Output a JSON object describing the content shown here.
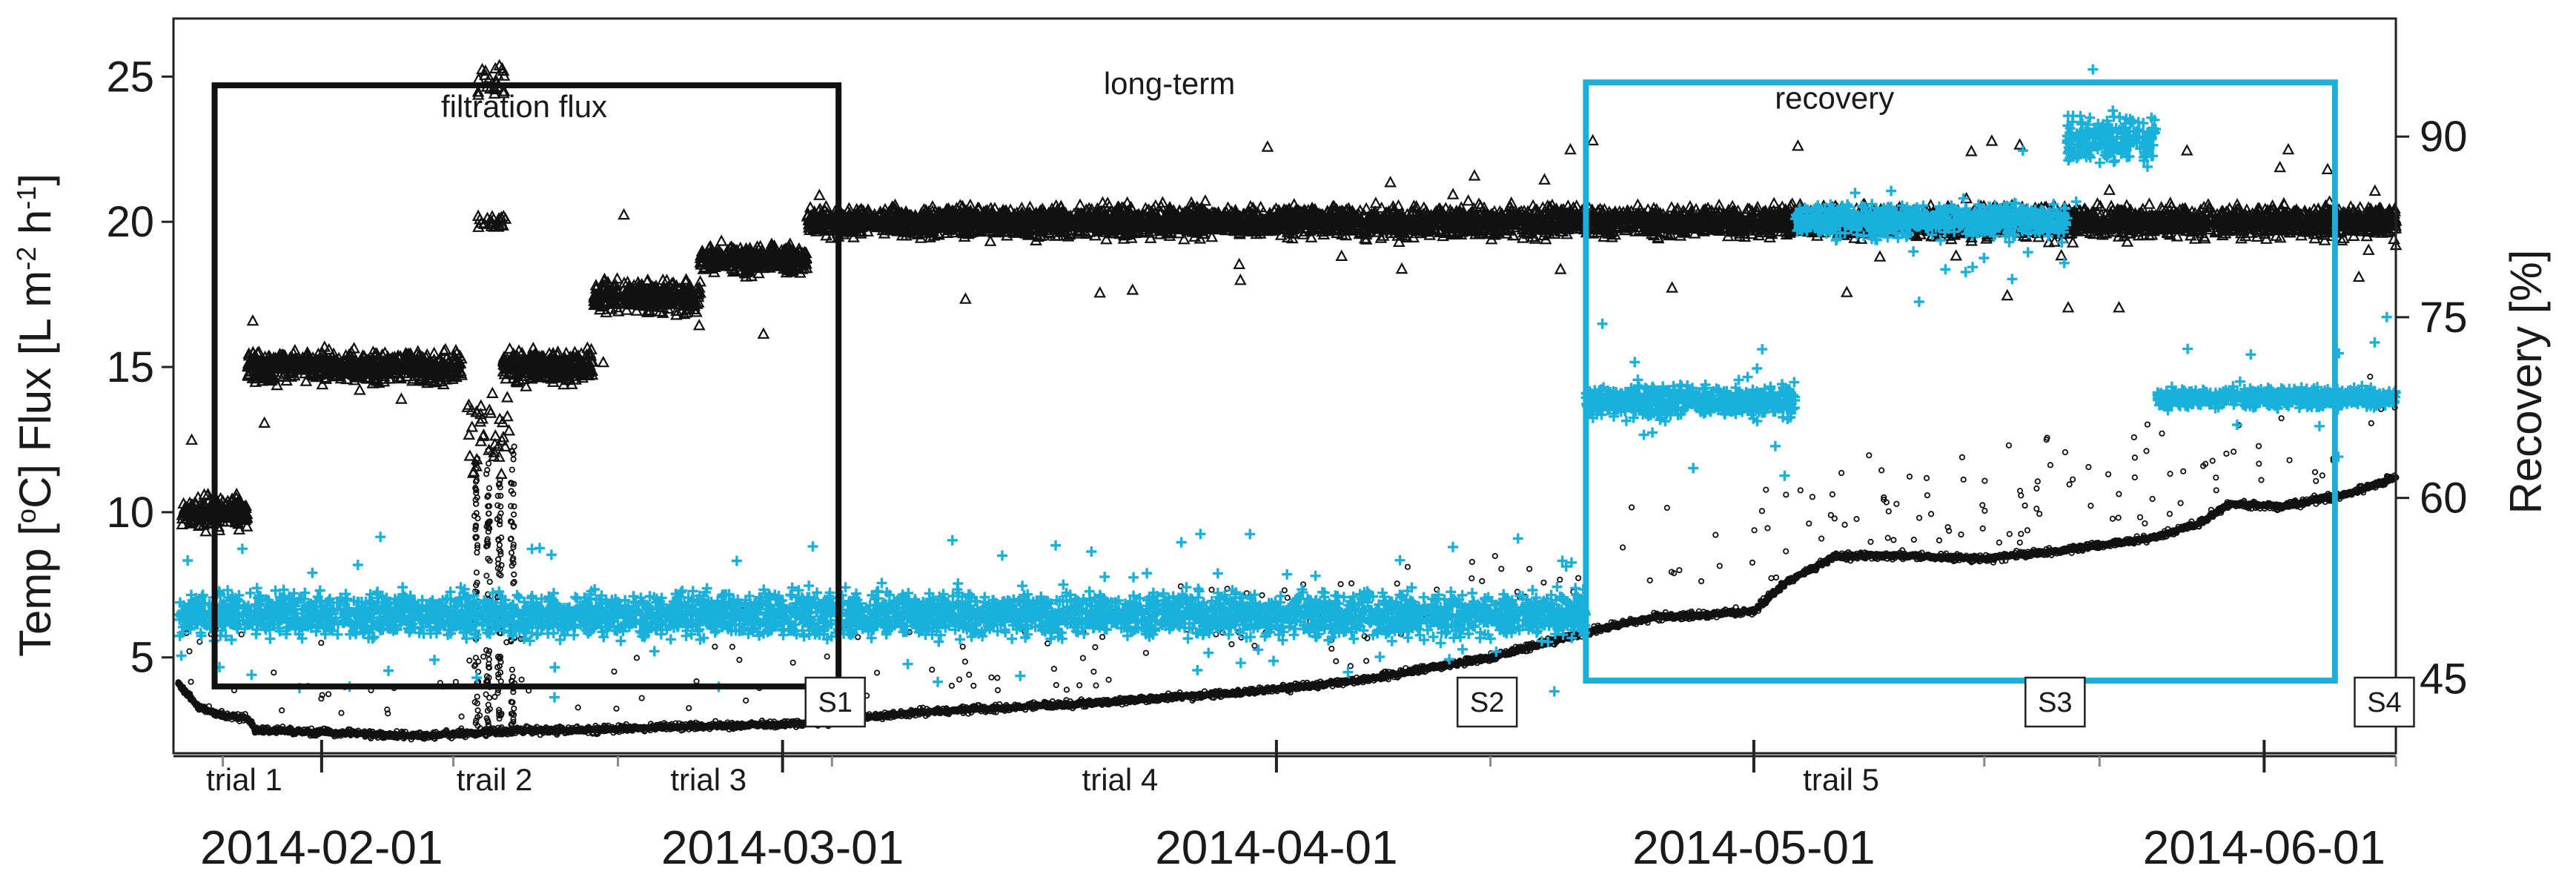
{
  "chart_data": {
    "type": "scatter",
    "y_left": {
      "label_parts": [
        "Temp [",
        "o",
        "C] Flux [L m",
        "-2",
        " h",
        "-1",
        "]"
      ],
      "ticks": [
        5,
        10,
        15,
        20,
        25
      ],
      "range": [
        1.7,
        27.0
      ]
    },
    "y_right": {
      "label": "Recovery [%]",
      "ticks": [
        45,
        60,
        75,
        90
      ],
      "range": [
        38.8,
        99.8
      ]
    },
    "x_axis": {
      "range": [
        0,
        135
      ],
      "date_ticks": [
        {
          "day": 9,
          "label": "2014-02-01"
        },
        {
          "day": 37,
          "label": "2014-03-01"
        },
        {
          "day": 67,
          "label": "2014-04-01"
        },
        {
          "day": 96,
          "label": "2014-05-01"
        },
        {
          "day": 127,
          "label": "2014-06-01"
        }
      ],
      "minor_ticks": [
        3,
        9,
        17,
        27,
        37,
        40,
        67,
        80,
        96,
        110,
        117,
        127,
        135
      ],
      "trials": [
        {
          "day": 4.3,
          "label": "trial 1"
        },
        {
          "day": 19.5,
          "label": "trail 2"
        },
        {
          "day": 32.5,
          "label": "trial 3"
        },
        {
          "day": 57.5,
          "label": "trial 4"
        },
        {
          "day": 101.3,
          "label": "trail 5"
        }
      ]
    },
    "sample_points": [
      {
        "day": 40.2,
        "label": "S1"
      },
      {
        "day": 79.8,
        "label": "S2"
      },
      {
        "day": 114.3,
        "label": "S3"
      },
      {
        "day": 134.3,
        "label": "S4"
      }
    ],
    "annotations": [
      {
        "label": "filtration flux",
        "day": 21.3,
        "y": 23.6
      },
      {
        "label": "long-term",
        "day": 60.5,
        "y": 24.4
      },
      {
        "label": "recovery",
        "day": 100.9,
        "y": 23.9
      }
    ],
    "highlight_boxes": [
      {
        "name": "filtration flux",
        "color": "#111111",
        "x": [
          2.5,
          40.4
        ],
        "y": [
          4.0,
          24.7
        ]
      },
      {
        "name": "recovery",
        "color": "#1ab0dc",
        "x": [
          85.8,
          131.3
        ],
        "y": [
          4.2,
          24.8
        ]
      }
    ],
    "series": [
      {
        "name": "Flux",
        "axis": "left",
        "marker": "triangle",
        "color": "#111111",
        "segments": [
          {
            "x": [
              0.5,
              4.5
            ],
            "mean": 10.0,
            "spread": 0.9
          },
          {
            "x": [
              4.5,
              17.5
            ],
            "mean": 15.0,
            "spread": 0.9
          },
          {
            "x": [
              20.0,
              25.5
            ],
            "mean": 15.0,
            "spread": 0.9
          },
          {
            "x": [
              25.5,
              32.0
            ],
            "mean": 17.4,
            "spread": 0.9
          },
          {
            "x": [
              32.0,
              38.5
            ],
            "mean": 18.7,
            "spread": 0.8
          },
          {
            "x": [
              38.5,
              135.0
            ],
            "mean": 20.0,
            "spread": 0.85
          }
        ],
        "clusters": [
          {
            "x": [
              18.5,
              20.2
            ],
            "mean": 24.8,
            "spread": 1.0
          },
          {
            "x": [
              18.5,
              20.2
            ],
            "mean": 20.0,
            "spread": 0.4
          },
          {
            "x": [
              17.8,
              20.5
            ],
            "mean": 12.5,
            "spread": 2.5
          }
        ]
      },
      {
        "name": "Recovery",
        "axis": "right",
        "marker": "plus",
        "color": "#1ab0dc",
        "segments": [
          {
            "x": [
              0.3,
              85.8
            ],
            "mean": 50.3,
            "spread": 2.8
          },
          {
            "x": [
              85.8,
              98.5
            ],
            "mean": 68.0,
            "spread": 2.0
          },
          {
            "x": [
              98.5,
              115.0
            ],
            "mean": 83.0,
            "spread": 2.0
          },
          {
            "x": [
              115.0,
              120.5
            ],
            "mean": 89.8,
            "spread": 2.8
          },
          {
            "x": [
              120.5,
              135.0
            ],
            "mean": 68.3,
            "spread": 1.2
          }
        ]
      },
      {
        "name": "Temp",
        "axis": "left",
        "marker": "circle",
        "color": "#111111",
        "trend": [
          [
            0.3,
            4.1
          ],
          [
            1.5,
            3.3
          ],
          [
            3.0,
            3.0
          ],
          [
            4.5,
            2.9
          ],
          [
            5.0,
            2.5
          ],
          [
            10.0,
            2.4
          ],
          [
            15.0,
            2.3
          ],
          [
            18.0,
            2.4
          ],
          [
            22.0,
            2.5
          ],
          [
            25.0,
            2.5
          ],
          [
            30.0,
            2.6
          ],
          [
            37.0,
            2.7
          ],
          [
            40.0,
            2.8
          ],
          [
            45.0,
            3.1
          ],
          [
            55.0,
            3.4
          ],
          [
            65.0,
            3.8
          ],
          [
            72.0,
            4.2
          ],
          [
            80.0,
            5.0
          ],
          [
            84.0,
            5.6
          ],
          [
            86.0,
            5.9
          ],
          [
            90.0,
            6.4
          ],
          [
            94.0,
            6.5
          ],
          [
            96.0,
            6.6
          ],
          [
            98.0,
            7.6
          ],
          [
            101.0,
            8.5
          ],
          [
            105.0,
            8.5
          ],
          [
            110.0,
            8.4
          ],
          [
            115.0,
            8.7
          ],
          [
            120.0,
            9.1
          ],
          [
            123.0,
            9.6
          ],
          [
            125.0,
            10.3
          ],
          [
            128.0,
            10.2
          ],
          [
            132.0,
            10.6
          ],
          [
            134.0,
            11.0
          ],
          [
            135.0,
            11.2
          ]
        ],
        "spikes": [
          {
            "day": 18.4,
            "peak": 12.0
          },
          {
            "day": 19.1,
            "peak": 12.5
          },
          {
            "day": 19.8,
            "peak": 11.5
          },
          {
            "day": 20.6,
            "peak": 12.5
          }
        ]
      }
    ]
  }
}
